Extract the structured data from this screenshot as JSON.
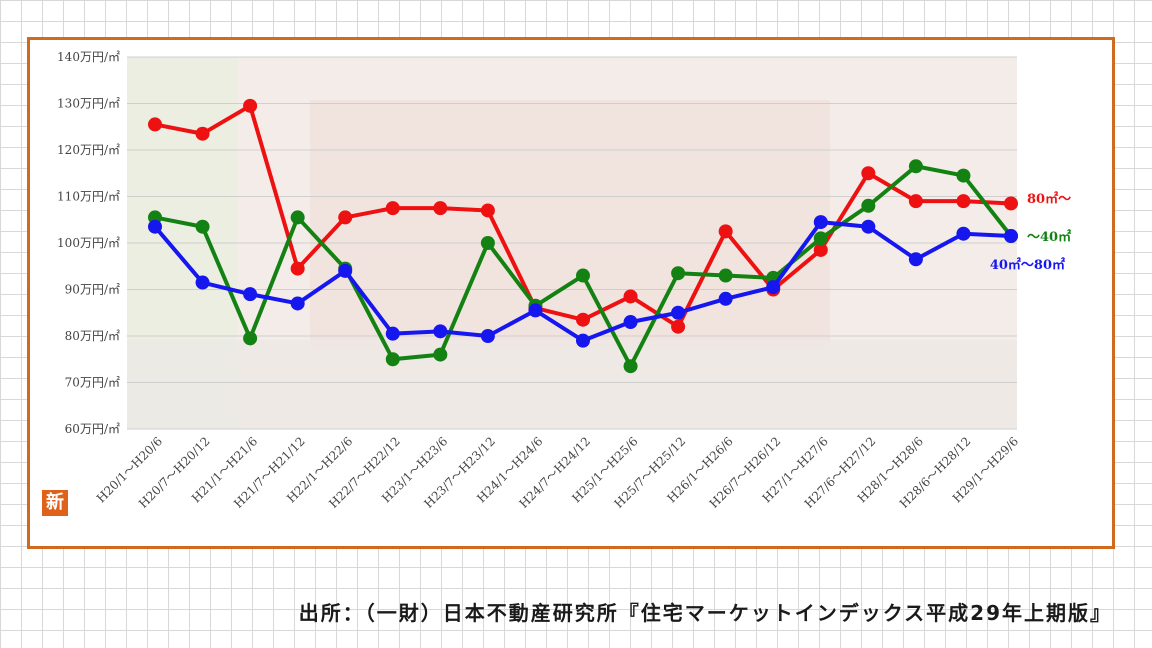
{
  "badge": {
    "text": "新",
    "color": "#e0621a"
  },
  "source": "出所：（一財）日本不動産研究所『住宅マーケットインデックス平成29年上期版』",
  "chart_data": {
    "type": "line",
    "title": "",
    "xlabel": "",
    "ylabel": "",
    "ylim": [
      60,
      140
    ],
    "yticks": [
      {
        "value": 140,
        "label": "140万円/㎡"
      },
      {
        "value": 130,
        "label": "130万円/㎡"
      },
      {
        "value": 120,
        "label": "120万円/㎡"
      },
      {
        "value": 110,
        "label": "110万円/㎡"
      },
      {
        "value": 100,
        "label": "100万円/㎡"
      },
      {
        "value": 90,
        "label": "90万円/㎡"
      },
      {
        "value": 80,
        "label": "80万円/㎡"
      },
      {
        "value": 70,
        "label": "70万円/㎡"
      },
      {
        "value": 60,
        "label": "60万円/㎡"
      }
    ],
    "grid": true,
    "categories": [
      "H20/1～H20/6",
      "H20/7～H20/12",
      "H21/1～H21/6",
      "H21/7～H21/12",
      "H22/1～H22/6",
      "H22/7～H22/12",
      "H23/1～H23/6",
      "H23/7～H23/12",
      "H24/1～H24/6",
      "H24/7～H24/12",
      "H25/1～H25/6",
      "H25/7～H25/12",
      "H26/1～H26/6",
      "H26/7～H26/12",
      "H27/1～H27/6",
      "H27/6～H27/12",
      "H28/1～H28/6",
      "H28/6～H28/12",
      "H29/1～H29/6"
    ],
    "series": [
      {
        "name": "80㎡～",
        "color": "#ee1111",
        "values": [
          125.5,
          123.5,
          129.5,
          94.5,
          105.5,
          107.5,
          107.5,
          107,
          86,
          83.5,
          88.5,
          82,
          102.5,
          90,
          98.5,
          115,
          109,
          109,
          108.5
        ]
      },
      {
        "name": "～40㎡",
        "color": "#138213",
        "values": [
          105.5,
          103.5,
          79.5,
          105.5,
          94.5,
          75,
          76,
          100,
          86.5,
          93,
          73.5,
          93.5,
          93,
          92.5,
          101,
          108,
          116.5,
          114.5,
          101.5
        ]
      },
      {
        "name": "40㎡～80㎡",
        "color": "#1616ee",
        "values": [
          103.5,
          91.5,
          89,
          87,
          94,
          80.5,
          81,
          80,
          85.5,
          79,
          83,
          85,
          88,
          90.5,
          104.5,
          103.5,
          96.5,
          102,
          101.5
        ]
      }
    ]
  }
}
